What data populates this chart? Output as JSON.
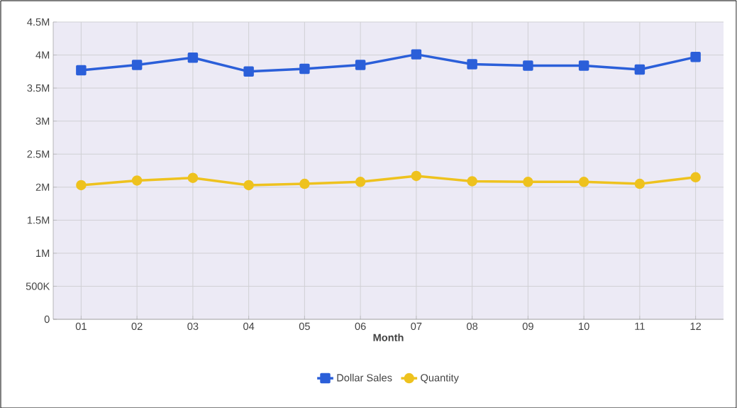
{
  "chart_data": {
    "type": "line",
    "xlabel": "Month",
    "categories": [
      "01",
      "02",
      "03",
      "04",
      "05",
      "06",
      "07",
      "08",
      "09",
      "10",
      "11",
      "12"
    ],
    "series": [
      {
        "name": "Dollar Sales",
        "color": "#2b5fd9",
        "marker": "square",
        "values": [
          3770000,
          3850000,
          3960000,
          3750000,
          3790000,
          3850000,
          4010000,
          3860000,
          3840000,
          3840000,
          3780000,
          3970000
        ]
      },
      {
        "name": "Quantity",
        "color": "#eec21e",
        "marker": "circle",
        "values": [
          2030000,
          2100000,
          2140000,
          2030000,
          2050000,
          2080000,
          2170000,
          2090000,
          2080000,
          2080000,
          2050000,
          2150000
        ]
      }
    ],
    "ylim": [
      0,
      4500000
    ],
    "yticks": [
      0,
      {
        "value": 500000,
        "label": "500K"
      },
      {
        "value": 1000000,
        "label": "1M"
      },
      {
        "value": 1500000,
        "label": "1.5M"
      },
      {
        "value": 2000000,
        "label": "2M"
      },
      {
        "value": 2500000,
        "label": "2.5M"
      },
      {
        "value": 3000000,
        "label": "3M"
      },
      {
        "value": 3500000,
        "label": "3.5M"
      },
      {
        "value": 4000000,
        "label": "4M"
      },
      {
        "value": 4500000,
        "label": "4.5M"
      }
    ],
    "grid": true,
    "legend": "bottom",
    "line_style": "solid"
  }
}
